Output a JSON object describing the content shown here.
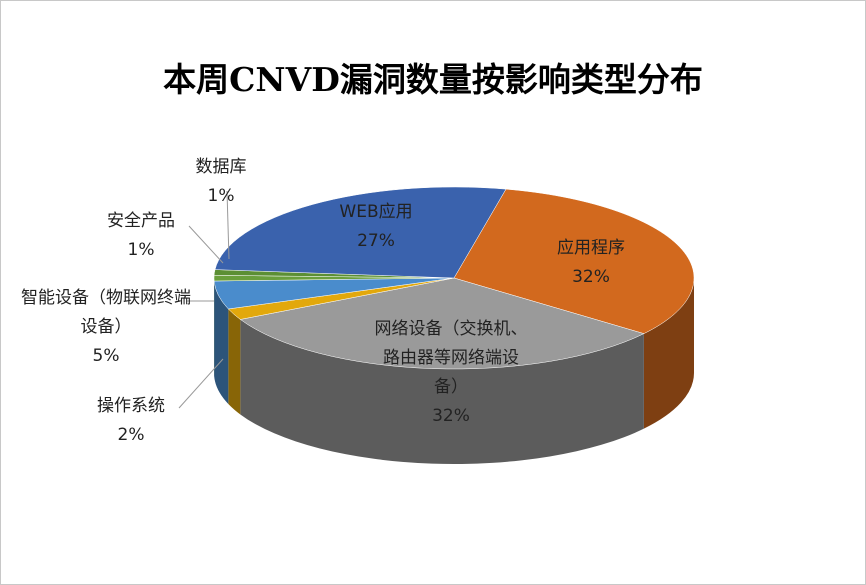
{
  "chart_data": {
    "type": "pie3d",
    "title": "本周CNVD漏洞数量按影响类型分布",
    "categories": [
      "应用程序",
      "网络设备（交换机、路由器等网络端设备）",
      "操作系统",
      "智能设备（物联网终端设备）",
      "安全产品",
      "数据库",
      "WEB应用"
    ],
    "values": [
      32,
      32,
      2,
      5,
      1,
      1,
      27
    ],
    "value_labels": [
      "32%",
      "32%",
      "2%",
      "5%",
      "1%",
      "1%",
      "27%"
    ],
    "colors": [
      "#d2691e",
      "#9a9a9a",
      "#e2a80c",
      "#4a8ccc",
      "#6a9f3c",
      "#5c8f34",
      "#3a62ad"
    ]
  }
}
